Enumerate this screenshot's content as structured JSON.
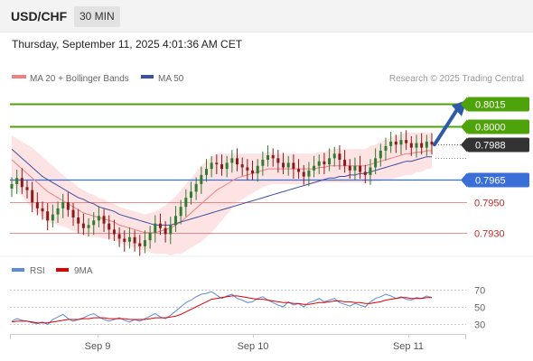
{
  "header": {
    "symbol": "USD/CHF",
    "timeframe": "30 MIN",
    "datetime": "Thursday, September 11, 2025 4:01:36 AM CET"
  },
  "legend": {
    "ma20_label": "MA 20 + Bollinger Bands",
    "ma50_label": "MA 50",
    "copyright": "Research © 2025 Trading Central",
    "rsi_label": "RSI",
    "rsi_ma_label": "9MA"
  },
  "colors": {
    "ma20": "#f08080",
    "ma50": "#3d4f9f",
    "band_fill": "#fde3e3",
    "resistance": "#4fa30a",
    "pivot": "#3b6fd8",
    "support": "#e06b6b",
    "candle_up": "#2f7d2f",
    "candle_down": "#8b1a1a",
    "rsi": "#5b8bd9",
    "rsi_ma": "#e00000",
    "current": "#333333"
  },
  "chart_data": {
    "type": "candlestick",
    "price_axis": {
      "min": 0.7915,
      "max": 0.8025
    },
    "levels": [
      {
        "label": "0.8015",
        "value": 0.8015,
        "kind": "resistance"
      },
      {
        "label": "0.8000",
        "value": 0.8,
        "kind": "resistance"
      },
      {
        "label": "0.7988",
        "value": 0.7988,
        "kind": "current"
      },
      {
        "label": "0.7965",
        "value": 0.7965,
        "kind": "pivot"
      },
      {
        "label": "0.7950",
        "value": 0.795,
        "kind": "support"
      },
      {
        "label": "0.7930",
        "value": 0.793,
        "kind": "support"
      }
    ],
    "x_ticks": [
      "Sep 9",
      "Sep 10",
      "Sep 11"
    ],
    "close": [
      0.7962,
      0.7966,
      0.796,
      0.7958,
      0.795,
      0.7946,
      0.7944,
      0.7938,
      0.7942,
      0.7946,
      0.795,
      0.7945,
      0.794,
      0.7936,
      0.7933,
      0.7935,
      0.7938,
      0.7941,
      0.7936,
      0.7932,
      0.7929,
      0.7926,
      0.7924,
      0.7927,
      0.7923,
      0.7921,
      0.7925,
      0.793,
      0.7936,
      0.7933,
      0.7929,
      0.7935,
      0.7941,
      0.7947,
      0.7953,
      0.7957,
      0.7962,
      0.7968,
      0.7972,
      0.7976,
      0.7975,
      0.7972,
      0.7976,
      0.7979,
      0.7975,
      0.7973,
      0.7971,
      0.7969,
      0.7974,
      0.7978,
      0.7981,
      0.7979,
      0.7976,
      0.7973,
      0.7976,
      0.7972,
      0.797,
      0.7967,
      0.7971,
      0.7974,
      0.7977,
      0.7975,
      0.7979,
      0.7982,
      0.7978,
      0.7974,
      0.7971,
      0.7974,
      0.797,
      0.7968,
      0.7973,
      0.7979,
      0.7984,
      0.7987,
      0.799,
      0.7988,
      0.7991,
      0.7989,
      0.7986,
      0.7989,
      0.7986,
      0.799,
      0.7988
    ],
    "ma20": [
      0.7978,
      0.7975,
      0.7972,
      0.7969,
      0.7966,
      0.7963,
      0.796,
      0.7957,
      0.7955,
      0.7953,
      0.7951,
      0.7949,
      0.7947,
      0.7945,
      0.7943,
      0.7942,
      0.7941,
      0.794,
      0.7939,
      0.7938,
      0.7937,
      0.7935,
      0.7934,
      0.7933,
      0.7932,
      0.7931,
      0.793,
      0.793,
      0.793,
      0.7931,
      0.7932,
      0.7933,
      0.7935,
      0.7937,
      0.794,
      0.7943,
      0.7946,
      0.7949,
      0.7952,
      0.7955,
      0.7958,
      0.796,
      0.7962,
      0.7964,
      0.7966,
      0.7967,
      0.7968,
      0.7969,
      0.797,
      0.7971,
      0.7972,
      0.7972,
      0.7972,
      0.7972,
      0.7972,
      0.7972,
      0.7972,
      0.7972,
      0.7972,
      0.7972,
      0.7973,
      0.7973,
      0.7974,
      0.7974,
      0.7974,
      0.7974,
      0.7974,
      0.7974,
      0.7974,
      0.7974,
      0.7975,
      0.7976,
      0.7977,
      0.7978,
      0.7979,
      0.798,
      0.7981,
      0.7982,
      0.7982,
      0.7983,
      0.7983,
      0.7984,
      0.7984
    ],
    "bb_width": [
      0.0016,
      0.0017,
      0.0018,
      0.0019,
      0.002,
      0.002,
      0.002,
      0.002,
      0.0019,
      0.0018,
      0.0017,
      0.0016,
      0.0016,
      0.0015,
      0.0015,
      0.0014,
      0.0014,
      0.0013,
      0.0013,
      0.0012,
      0.0012,
      0.0012,
      0.0012,
      0.0012,
      0.0012,
      0.0012,
      0.0012,
      0.0013,
      0.0014,
      0.0015,
      0.0016,
      0.0018,
      0.0019,
      0.0021,
      0.0022,
      0.0023,
      0.0024,
      0.0025,
      0.0025,
      0.0025,
      0.0024,
      0.0022,
      0.002,
      0.0018,
      0.0016,
      0.0015,
      0.0014,
      0.0013,
      0.0012,
      0.0011,
      0.0011,
      0.001,
      0.001,
      0.001,
      0.001,
      0.001,
      0.001,
      0.001,
      0.001,
      0.001,
      0.001,
      0.001,
      0.0011,
      0.0011,
      0.0011,
      0.0011,
      0.0011,
      0.0011,
      0.0011,
      0.0011,
      0.0012,
      0.0012,
      0.0013,
      0.0013,
      0.0014,
      0.0014,
      0.0014,
      0.0014,
      0.0014,
      0.0013,
      0.0013,
      0.0012,
      0.0012
    ],
    "ma50": [
      0.7985,
      0.7982,
      0.7979,
      0.7976,
      0.7973,
      0.797,
      0.7967,
      0.7965,
      0.7963,
      0.7961,
      0.7959,
      0.7957,
      0.7955,
      0.7953,
      0.7952,
      0.795,
      0.7949,
      0.7947,
      0.7946,
      0.7945,
      0.7944,
      0.7942,
      0.7941,
      0.794,
      0.7939,
      0.7938,
      0.7937,
      0.7936,
      0.7935,
      0.7935,
      0.7935,
      0.7935,
      0.7936,
      0.7937,
      0.7938,
      0.7939,
      0.794,
      0.7941,
      0.7942,
      0.7943,
      0.7944,
      0.7945,
      0.7946,
      0.7947,
      0.7948,
      0.7949,
      0.795,
      0.7951,
      0.7952,
      0.7953,
      0.7954,
      0.7955,
      0.7956,
      0.7957,
      0.7958,
      0.7959,
      0.796,
      0.7961,
      0.7962,
      0.7963,
      0.7964,
      0.7965,
      0.7966,
      0.7966,
      0.7967,
      0.7967,
      0.7968,
      0.7968,
      0.7969,
      0.7969,
      0.797,
      0.7971,
      0.7972,
      0.7973,
      0.7974,
      0.7975,
      0.7976,
      0.7977,
      0.7977,
      0.7978,
      0.7979,
      0.798,
      0.798
    ],
    "rsi_axis": {
      "min": 20,
      "max": 80,
      "ticks": [
        70,
        50,
        30
      ]
    },
    "rsi": [
      33,
      36,
      34,
      33,
      31,
      30,
      32,
      29,
      35,
      38,
      41,
      36,
      33,
      35,
      37,
      40,
      42,
      38,
      35,
      33,
      35,
      37,
      34,
      32,
      35,
      33,
      36,
      39,
      42,
      38,
      36,
      40,
      45,
      50,
      55,
      58,
      62,
      65,
      66,
      68,
      64,
      60,
      63,
      65,
      60,
      58,
      55,
      56,
      60,
      62,
      58,
      55,
      52,
      50,
      56,
      52,
      54,
      50,
      55,
      57,
      60,
      56,
      58,
      60,
      55,
      53,
      51,
      54,
      52,
      50,
      56,
      60,
      62,
      65,
      63,
      60,
      62,
      59,
      58,
      61,
      60,
      63,
      61
    ],
    "rsi_ma": [
      32,
      33,
      33,
      33,
      32,
      31,
      31,
      31,
      32,
      33,
      34,
      35,
      35,
      35,
      36,
      36,
      37,
      37,
      37,
      36,
      36,
      36,
      36,
      35,
      35,
      35,
      35,
      36,
      37,
      37,
      37,
      38,
      39,
      41,
      44,
      47,
      50,
      53,
      56,
      59,
      60,
      61,
      62,
      63,
      63,
      62,
      61,
      60,
      59,
      59,
      58,
      57,
      56,
      55,
      55,
      54,
      54,
      53,
      53,
      54,
      55,
      55,
      56,
      57,
      57,
      56,
      56,
      55,
      55,
      54,
      54,
      55,
      56,
      58,
      59,
      60,
      61,
      61,
      60,
      60,
      60,
      61,
      61
    ]
  }
}
